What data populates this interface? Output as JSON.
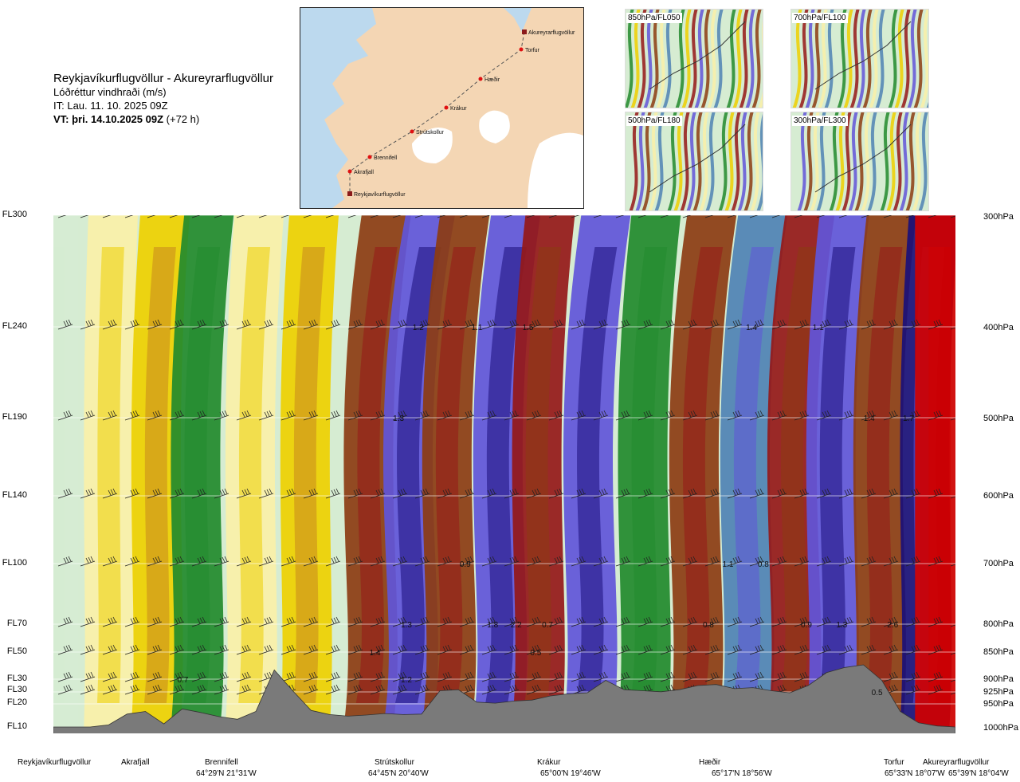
{
  "title": {
    "route": "Reykjavíkurflugvöllur - Akureyrarflugvöllur",
    "variable": "Lóðréttur vindhraði (m/s)",
    "it": "IT: Lau. 11. 10. 2025 09Z",
    "vt": "VT: þri. 14.10.2025 09Z",
    "vt_offset": "(+72 h)"
  },
  "route_map": {
    "points": [
      {
        "name": "Akureyrarflugvöllur"
      },
      {
        "name": "Torfur"
      },
      {
        "name": "Hæðir"
      },
      {
        "name": "Krákur"
      },
      {
        "name": "Strútskollur"
      },
      {
        "name": "Brennifell"
      },
      {
        "name": "Akrafjall"
      },
      {
        "name": "Reykjavíkurflugvöllur"
      }
    ]
  },
  "level_maps": [
    {
      "label": "850hPa/FL050"
    },
    {
      "label": "700hPa/FL100"
    },
    {
      "label": "500hPa/FL180"
    },
    {
      "label": "300hPa/FL300"
    }
  ],
  "colors": {
    "light_green": "#d6ecd2",
    "pale_yellow": "#faf0a8",
    "yellow": "#eed000",
    "orange": "#c9871f",
    "brown": "#8c3c12",
    "dark_red": "#951818",
    "red": "#d00000",
    "green": "#228a2d",
    "steel_blue": "#4f82b4",
    "violet": "#6155d9",
    "navy": "#1a0f7a",
    "terrain": "#7a7a7a"
  },
  "chart_data": {
    "type": "heatmap",
    "title": "Lóðréttur vindhraði (m/s)",
    "flight_levels": [
      "FL300",
      "FL240",
      "FL190",
      "FL140",
      "FL100",
      "FL70",
      "FL50",
      "FL30",
      "FL30",
      "FL20",
      "FL10"
    ],
    "pressure_levels": [
      "300hPa",
      "400hPa",
      "500hPa",
      "600hPa",
      "700hPa",
      "800hPa",
      "850hPa",
      "900hPa",
      "925hPa",
      "950hPa",
      "1000hPa"
    ],
    "grid": true,
    "value_labels": [
      {
        "text": "1.2",
        "x_km": 93,
        "level_hpa": 400
      },
      {
        "text": "1.1",
        "x_km": 108,
        "level_hpa": 400
      },
      {
        "text": "1.5",
        "x_km": 121,
        "level_hpa": 400
      },
      {
        "text": "1.4",
        "x_km": 178,
        "level_hpa": 400
      },
      {
        "text": "1.1",
        "x_km": 195,
        "level_hpa": 400
      },
      {
        "text": "1.3",
        "x_km": 88,
        "level_hpa": 500
      },
      {
        "text": "1.4",
        "x_km": 208,
        "level_hpa": 500
      },
      {
        "text": "1.7",
        "x_km": 218,
        "level_hpa": 500
      },
      {
        "text": "0.9",
        "x_km": 105,
        "level_hpa": 700
      },
      {
        "text": "1.1",
        "x_km": 172,
        "level_hpa": 700
      },
      {
        "text": "0.8",
        "x_km": 181,
        "level_hpa": 700
      },
      {
        "text": "1.3",
        "x_km": 90,
        "level_hpa": 800
      },
      {
        "text": "1.8",
        "x_km": 112,
        "level_hpa": 800
      },
      {
        "text": "2.2",
        "x_km": 118,
        "level_hpa": 800
      },
      {
        "text": "0.7",
        "x_km": 126,
        "level_hpa": 800
      },
      {
        "text": "0.8",
        "x_km": 167,
        "level_hpa": 800
      },
      {
        "text": "0.9",
        "x_km": 192,
        "level_hpa": 800
      },
      {
        "text": "1.3",
        "x_km": 201,
        "level_hpa": 800
      },
      {
        "text": "2.6",
        "x_km": 214,
        "level_hpa": 800
      },
      {
        "text": "1.4",
        "x_km": 82,
        "level_hpa": 850
      },
      {
        "text": "0.5",
        "x_km": 123,
        "level_hpa": 850
      },
      {
        "text": "0.7",
        "x_km": 33,
        "level_hpa": 900
      },
      {
        "text": "1.2",
        "x_km": 90,
        "level_hpa": 900
      },
      {
        "text": "0.5",
        "x_km": 210,
        "level_hpa": 925
      }
    ],
    "waypoints": [
      {
        "name": "Reykjavíkurflugvöllur",
        "coord": "",
        "x_km": 0
      },
      {
        "name": "Akrafjall",
        "coord": "",
        "x_km": 16
      },
      {
        "name": "Brennifell",
        "coord": "64°29'N 21°31'W",
        "x_km": 34
      },
      {
        "name": "Strútskollur",
        "coord": "64°45'N 20°40'W",
        "x_km": 76
      },
      {
        "name": "Krákur",
        "coord": "65°00'N 19°46'W",
        "x_km": 120
      },
      {
        "name": "Hæðir",
        "coord": "65°17'N 18°56'W",
        "x_km": 168
      },
      {
        "name": "Torfur",
        "coord": "65°33'N 18°07'W",
        "x_km": 221
      },
      {
        "name": "Akureyrarflugvöllur",
        "coord": "65°39'N 18°04'W",
        "x_km": 228
      }
    ],
    "bands": [
      {
        "x_km": 0,
        "color": "light_green",
        "tilt": 0
      },
      {
        "x_km": 14,
        "color": "pale_yellow",
        "tilt": 2
      },
      {
        "x_km": 26,
        "color": "yellow",
        "tilt": 4
      },
      {
        "x_km": 36,
        "color": "green",
        "tilt": 6
      },
      {
        "x_km": 50,
        "color": "pale_yellow",
        "tilt": 4
      },
      {
        "x_km": 64,
        "color": "yellow",
        "tilt": 4
      },
      {
        "x_km": 80,
        "color": "brown",
        "tilt": 8
      },
      {
        "x_km": 90,
        "color": "violet",
        "tilt": 10
      },
      {
        "x_km": 100,
        "color": "brown",
        "tilt": 8
      },
      {
        "x_km": 113,
        "color": "violet",
        "tilt": 8
      },
      {
        "x_km": 123,
        "color": "dark_red",
        "tilt": 6
      },
      {
        "x_km": 136,
        "color": "violet",
        "tilt": 8
      },
      {
        "x_km": 150,
        "color": "green",
        "tilt": 6
      },
      {
        "x_km": 163,
        "color": "brown",
        "tilt": 8
      },
      {
        "x_km": 176,
        "color": "steel_blue",
        "tilt": 8
      },
      {
        "x_km": 188,
        "color": "dark_red",
        "tilt": 8
      },
      {
        "x_km": 198,
        "color": "violet",
        "tilt": 6
      },
      {
        "x_km": 210,
        "color": "brown",
        "tilt": 6
      },
      {
        "x_km": 222,
        "color": "navy",
        "tilt": 4
      },
      {
        "x_km": 226,
        "color": "red",
        "tilt": 0
      }
    ],
    "terrain_m": [
      0,
      0,
      0,
      40,
      250,
      300,
      60,
      350,
      280,
      200,
      150,
      300,
      1100,
      700,
      320,
      240,
      210,
      230,
      260,
      240,
      250,
      700,
      720,
      480,
      460,
      500,
      520,
      600,
      640,
      660,
      900,
      720,
      700,
      680,
      720,
      800,
      820,
      740,
      760,
      700,
      660,
      800,
      1050,
      1150,
      1200,
      900,
      300,
      80,
      20,
      0
    ]
  }
}
